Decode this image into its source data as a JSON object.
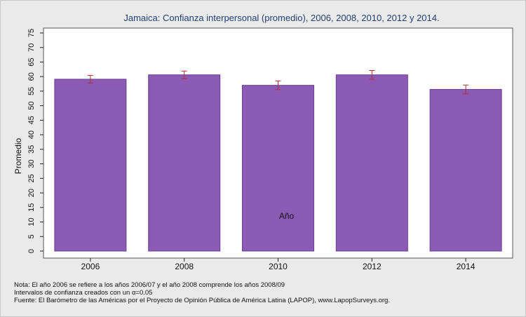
{
  "chart_data": {
    "type": "bar",
    "title": "Jamaica: Confianza interpersonal (promedio), 2006, 2008, 2010, 2012 y 2014.",
    "xlabel": "Año",
    "ylabel": "Promedio",
    "categories": [
      "2006",
      "2008",
      "2010",
      "2012",
      "2014"
    ],
    "values": [
      59.1,
      60.6,
      57.0,
      60.6,
      55.6
    ],
    "ci_low": [
      57.8,
      59.3,
      55.5,
      59.1,
      54.1
    ],
    "ci_high": [
      60.4,
      61.9,
      58.5,
      62.1,
      57.1
    ],
    "ylim": [
      0,
      75
    ],
    "yticks": [
      0,
      5,
      10,
      15,
      20,
      25,
      30,
      35,
      40,
      45,
      50,
      55,
      60,
      65,
      70,
      75
    ],
    "grid": false,
    "legend": "none",
    "colors": {
      "bar": "#8b5ab5",
      "bar_edge": "#6b3f93",
      "error_bar": "#b03030",
      "plot_bg": "#ffffff",
      "page_bg": "#eaeaea",
      "title": "#1f3f73"
    }
  },
  "notes": {
    "line1": "Nota: El año 2006 se refiere a los años 2006/07 y el año 2008 comprende los años 2008/09",
    "line2": "Intervalos de confianza creados con un α=0.05",
    "line3": "Fuente: El Barómetro de las Américas por el Proyecto de Opinión Pública de América Latina (LAPOP), www.LapopSurveys.org."
  }
}
